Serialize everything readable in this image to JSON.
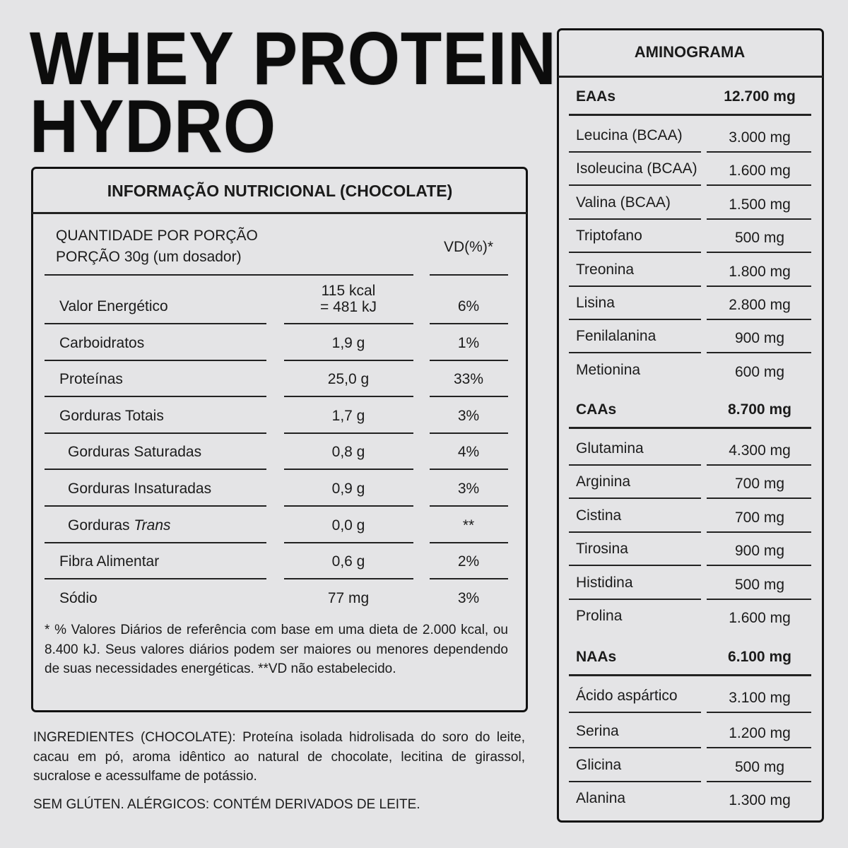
{
  "title": {
    "line1": "WHEY PROTEIN",
    "line2": "HYDRO"
  },
  "nutrition": {
    "header": "INFORMAÇÃO NUTRICIONAL (CHOCOLATE)",
    "quantity_label": "QUANTIDADE POR PORÇÃO",
    "serving": "PORÇÃO 30g (um dosador)",
    "vd_header": "VD(%)*",
    "rows": [
      {
        "label": "Valor Energético",
        "value": "115 kcal",
        "value2": "= 481 kJ",
        "vd": "6%",
        "indent": false
      },
      {
        "label": "Carboidratos",
        "value": "1,9 g",
        "vd": "1%",
        "indent": false
      },
      {
        "label": "Proteínas",
        "value": "25,0 g",
        "vd": "33%",
        "indent": false
      },
      {
        "label": "Gorduras Totais",
        "value": "1,7 g",
        "vd": "3%",
        "indent": false
      },
      {
        "label": "Gorduras Saturadas",
        "value": "0,8 g",
        "vd": "4%",
        "indent": true
      },
      {
        "label": "Gorduras Insaturadas",
        "value": "0,9 g",
        "vd": "3%",
        "indent": true
      },
      {
        "label": "Gorduras ",
        "label_italic": "Trans",
        "value": "0,0 g",
        "vd": "**",
        "indent": true
      },
      {
        "label": "Fibra Alimentar",
        "value": "0,6 g",
        "vd": "2%",
        "indent": false
      },
      {
        "label": "Sódio",
        "value": "77 mg",
        "vd": "3%",
        "indent": false
      }
    ],
    "footnote": "* % Valores Diários de referência com base em uma dieta de 2.000 kcal, ou 8.400 kJ. Seus valores diários podem ser maiores ou menores dependendo de suas necessidades energéticas. **VD não estabelecido."
  },
  "ingredients": "INGREDIENTES (CHOCOLATE): Proteína isolada hidrolisada do soro do leite, cacau em pó, aroma idêntico ao natural de chocolate, lecitina de girassol, sucralose e acessulfame de potássio.",
  "allergens": "SEM GLÚTEN. ALÉRGICOS: CONTÉM DERIVADOS DE LEITE.",
  "aminograma": {
    "header": "AMINOGRAMA",
    "groups": [
      {
        "name": "EAAs",
        "total": "12.700 mg",
        "items": [
          {
            "name": "Leucina (BCAA)",
            "value": "3.000 mg"
          },
          {
            "name": "Isoleucina (BCAA)",
            "value": "1.600 mg"
          },
          {
            "name": "Valina (BCAA)",
            "value": "1.500 mg"
          },
          {
            "name": "Triptofano",
            "value": "500 mg"
          },
          {
            "name": "Treonina",
            "value": "1.800 mg"
          },
          {
            "name": "Lisina",
            "value": "2.800 mg"
          },
          {
            "name": "Fenilalanina",
            "value": "900 mg"
          },
          {
            "name": "Metionina",
            "value": "600 mg"
          }
        ]
      },
      {
        "name": "CAAs",
        "total": "8.700 mg",
        "items": [
          {
            "name": "Glutamina",
            "value": "4.300 mg"
          },
          {
            "name": "Arginina",
            "value": "700 mg"
          },
          {
            "name": "Cistina",
            "value": "700 mg"
          },
          {
            "name": "Tirosina",
            "value": "900 mg"
          },
          {
            "name": "Histidina",
            "value": "500 mg"
          },
          {
            "name": "Prolina",
            "value": "1.600 mg"
          }
        ]
      },
      {
        "name": "NAAs",
        "total": "6.100 mg",
        "items": [
          {
            "name": "Ácido aspártico",
            "value": "3.100 mg"
          },
          {
            "name": "Serina",
            "value": "1.200 mg"
          },
          {
            "name": "Glicina",
            "value": "500 mg"
          },
          {
            "name": "Alanina",
            "value": "1.300 mg"
          }
        ]
      }
    ]
  }
}
